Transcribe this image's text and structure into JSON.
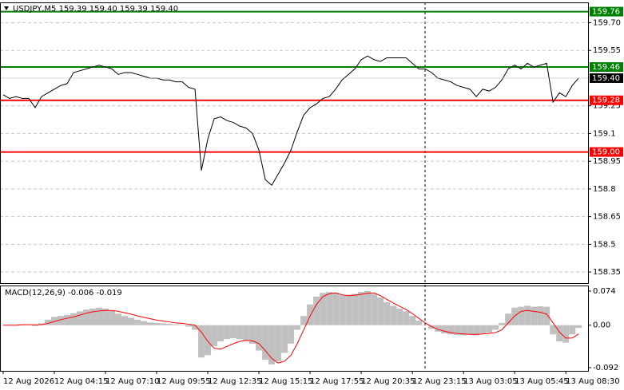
{
  "chart_data": [
    {
      "type": "line",
      "title": "USDJPY,M5  159.39 159.40 159.39 159.40",
      "color": "#000000",
      "values": [
        159.31,
        159.29,
        159.3,
        159.29,
        159.29,
        159.24,
        159.3,
        159.32,
        159.34,
        159.36,
        159.37,
        159.43,
        159.44,
        159.45,
        159.46,
        159.47,
        159.46,
        159.45,
        159.42,
        159.43,
        159.43,
        159.42,
        159.41,
        159.4,
        159.4,
        159.39,
        159.39,
        159.38,
        159.38,
        159.35,
        159.34,
        158.9,
        159.07,
        159.18,
        159.19,
        159.17,
        159.16,
        159.14,
        159.13,
        159.1,
        159.01,
        158.85,
        158.82,
        158.88,
        158.94,
        159.01,
        159.11,
        159.2,
        159.24,
        159.26,
        159.29,
        159.3,
        159.34,
        159.39,
        159.42,
        159.45,
        159.5,
        159.52,
        159.5,
        159.49,
        159.51,
        159.51,
        159.51,
        159.51,
        159.48,
        159.45,
        159.45,
        159.43,
        159.4,
        159.39,
        159.38,
        159.36,
        159.35,
        159.34,
        159.3,
        159.34,
        159.33,
        159.35,
        159.39,
        159.45,
        159.47,
        159.45,
        159.48,
        159.46,
        159.47,
        159.48,
        159.27,
        159.32,
        159.3,
        159.36,
        159.4
      ],
      "xlim": [
        -0.5,
        91.6
      ],
      "xticks": [
        {
          "value": 0,
          "label": "12 Aug 2026"
        },
        {
          "value": 8,
          "label": "12 Aug 04:15"
        },
        {
          "value": 16,
          "label": "12 Aug 07:10"
        },
        {
          "value": 24,
          "label": "12 Aug 09:55"
        },
        {
          "value": 32,
          "label": "12 Aug 12:35"
        },
        {
          "value": 40,
          "label": "12 Aug 15:15"
        },
        {
          "value": 48,
          "label": "12 Aug 17:55"
        },
        {
          "value": 56,
          "label": "12 Aug 20:35"
        },
        {
          "value": 64,
          "label": "12 Aug 23:15"
        },
        {
          "value": 72,
          "label": "13 Aug 03:05"
        },
        {
          "value": 80,
          "label": "13 Aug 05:45"
        },
        {
          "value": 88,
          "label": "13 Aug 08:30"
        }
      ],
      "ylim": [
        158.29,
        159.81
      ],
      "yticks": [
        {
          "value": 159.7,
          "label": "159.70"
        },
        159.55,
        159.25,
        159.1,
        158.95,
        158.8,
        158.65,
        158.5,
        158.35
      ],
      "grid": true,
      "current_price": {
        "value": 159.4,
        "label": "159.40"
      },
      "levels": [
        {
          "value": 159.76,
          "color": "#008000"
        },
        {
          "value": 159.46,
          "color": "#008000"
        },
        {
          "value": 159.28,
          "color": "#ff0000"
        },
        {
          "value": 159,
          "label": "159.00",
          "color": "#ff0000"
        }
      ]
    },
    {
      "type": "macd",
      "title": "MACD(12,26,9) -0.006 -0.019",
      "ylim": [
        -0.099,
        0.086
      ],
      "yticks": [
        0.074,
        {
          "value": 0,
          "label": "0.00"
        },
        -0.092
      ],
      "series": [
        {
          "style": "histogram",
          "color": "#c0c0c0",
          "values": [
            0.0,
            0.001,
            0.0,
            0.002,
            0.001,
            -0.002,
            0.004,
            0.012,
            0.018,
            0.02,
            0.022,
            0.026,
            0.03,
            0.034,
            0.036,
            0.038,
            0.036,
            0.032,
            0.025,
            0.02,
            0.016,
            0.012,
            0.009,
            0.006,
            0.005,
            0.004,
            0.003,
            0.002,
            0.001,
            -0.003,
            -0.01,
            -0.07,
            -0.065,
            -0.045,
            -0.035,
            -0.03,
            -0.028,
            -0.03,
            -0.033,
            -0.04,
            -0.055,
            -0.075,
            -0.085,
            -0.078,
            -0.06,
            -0.04,
            -0.01,
            0.02,
            0.045,
            0.062,
            0.07,
            0.072,
            0.07,
            0.066,
            0.066,
            0.068,
            0.072,
            0.074,
            0.068,
            0.06,
            0.05,
            0.042,
            0.036,
            0.03,
            0.02,
            0.01,
            0.0,
            -0.008,
            -0.014,
            -0.018,
            -0.02,
            -0.021,
            -0.022,
            -0.02,
            -0.022,
            -0.018,
            -0.016,
            -0.01,
            0.005,
            0.025,
            0.038,
            0.04,
            0.042,
            0.04,
            0.041,
            0.04,
            -0.02,
            -0.035,
            -0.038,
            -0.02,
            -0.006
          ]
        },
        {
          "style": "line",
          "color": "#ff0000",
          "values": [
            0.0,
            0.0,
            0.0,
            0.001,
            0.001,
            0.001,
            0.001,
            0.004,
            0.008,
            0.012,
            0.015,
            0.018,
            0.022,
            0.026,
            0.029,
            0.031,
            0.032,
            0.032,
            0.03,
            0.027,
            0.024,
            0.02,
            0.017,
            0.014,
            0.011,
            0.009,
            0.007,
            0.005,
            0.004,
            0.002,
            0.0,
            -0.015,
            -0.035,
            -0.05,
            -0.052,
            -0.046,
            -0.04,
            -0.035,
            -0.033,
            -0.034,
            -0.04,
            -0.055,
            -0.072,
            -0.082,
            -0.078,
            -0.065,
            -0.04,
            -0.01,
            0.02,
            0.045,
            0.062,
            0.068,
            0.07,
            0.066,
            0.064,
            0.065,
            0.067,
            0.069,
            0.07,
            0.064,
            0.056,
            0.048,
            0.041,
            0.034,
            0.025,
            0.015,
            0.005,
            -0.003,
            -0.009,
            -0.013,
            -0.016,
            -0.018,
            -0.019,
            -0.02,
            -0.02,
            -0.019,
            -0.018,
            -0.016,
            -0.01,
            0.005,
            0.02,
            0.03,
            0.032,
            0.03,
            0.028,
            0.024,
            0.005,
            -0.015,
            -0.028,
            -0.028,
            -0.019
          ]
        }
      ]
    }
  ]
}
